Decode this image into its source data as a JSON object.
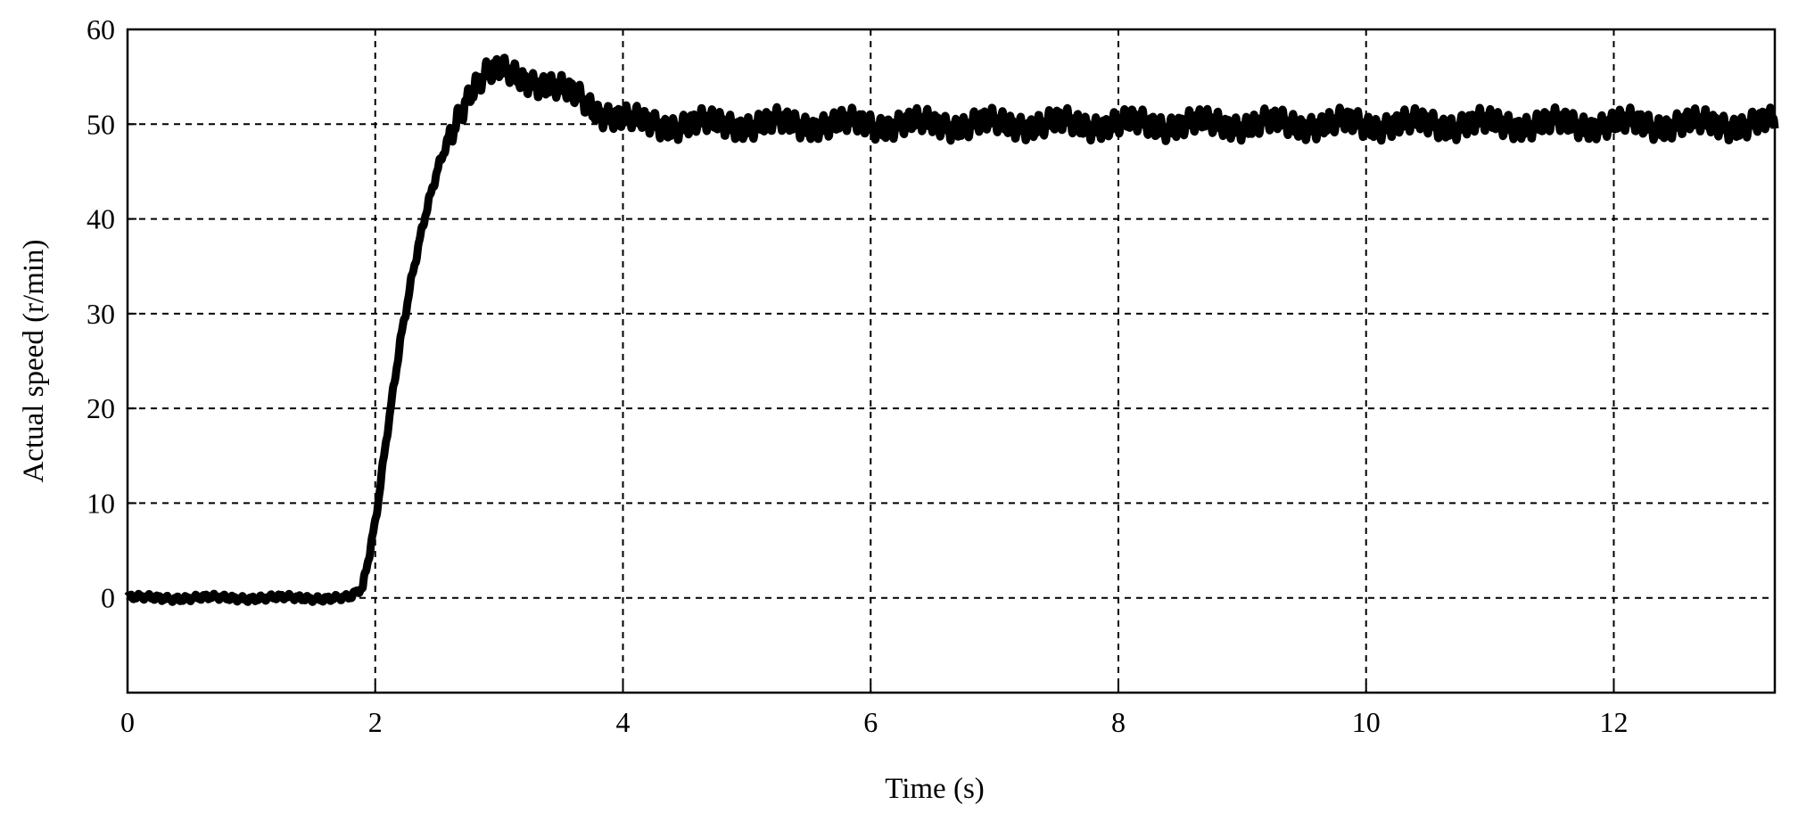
{
  "chart_data": {
    "type": "line",
    "title": "",
    "xlabel": "Time (s)",
    "ylabel": "Actual speed (r/min)",
    "xlim": [
      0,
      13.3
    ],
    "ylim": [
      -10,
      60
    ],
    "xticks": [
      0,
      2,
      4,
      6,
      8,
      10,
      12
    ],
    "xtick_labels": [
      "0",
      "2",
      "4",
      "6",
      "8",
      "10",
      "12"
    ],
    "yticks": [
      0,
      10,
      20,
      30,
      40,
      50,
      60
    ],
    "ytick_labels": [
      "0",
      "10",
      "20",
      "30",
      "40",
      "50",
      "60"
    ],
    "grid": true,
    "grid_style": "dashed",
    "legend": false,
    "line_color": "#000000",
    "series": [
      {
        "x": [
          0,
          0.5,
          1.0,
          1.5,
          1.8,
          1.9,
          2.0,
          2.1,
          2.2,
          2.3,
          2.4,
          2.5,
          2.6,
          2.7,
          2.8,
          2.9,
          3.0,
          3.1,
          3.2,
          3.3,
          3.4,
          3.5,
          3.6,
          3.7,
          3.8,
          3.9,
          4.0,
          4.2,
          4.5,
          5.0,
          5.5,
          6.0,
          6.5,
          7.0,
          7.5,
          8.0,
          8.5,
          9.0,
          9.5,
          10.0,
          10.5,
          11.0,
          11.5,
          12.0,
          12.5,
          13.0,
          13.3
        ],
        "y": [
          0,
          0,
          0,
          0,
          0,
          1,
          8,
          18,
          27,
          34,
          40,
          45,
          49,
          52,
          54,
          55,
          55.5,
          55.5,
          55,
          54.5,
          54,
          53.5,
          53,
          52.5,
          51.5,
          51,
          50.5,
          50,
          50,
          50,
          50,
          50,
          50,
          50,
          50,
          50,
          50,
          50,
          50,
          50,
          50,
          50,
          50,
          50,
          50,
          50,
          50
        ],
        "noise_amplitude": 1.5
      }
    ]
  }
}
